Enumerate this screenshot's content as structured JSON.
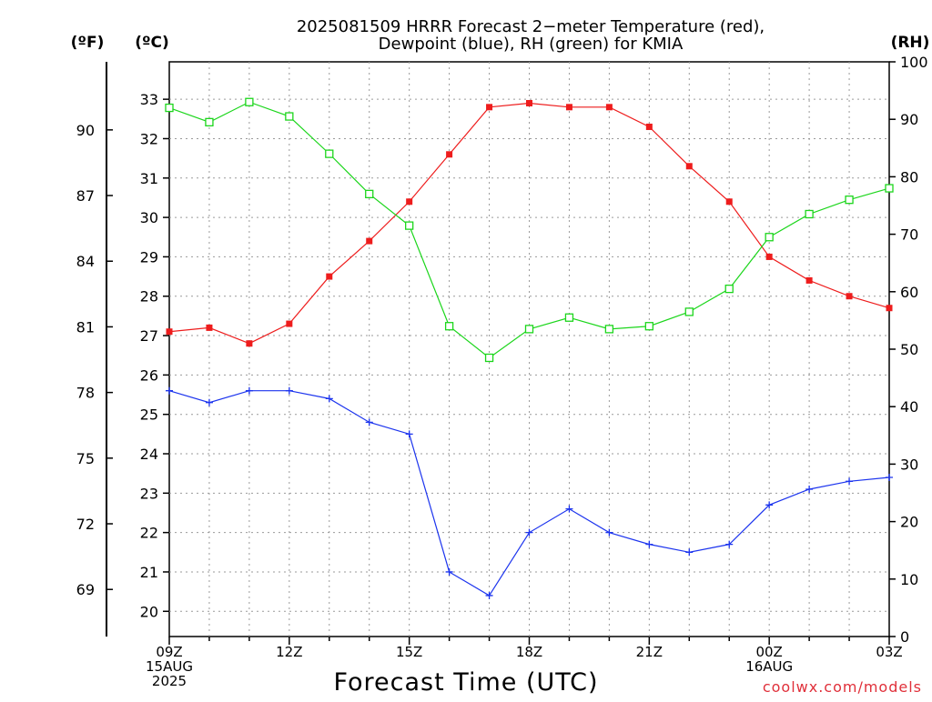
{
  "chart_data": {
    "type": "line",
    "title_lines": [
      "2025081509 HRRR Forecast 2−meter Temperature (red),",
      "Dewpoint (blue), RH (green) for KMIA"
    ],
    "xlabel": "Forecast Time (UTC)",
    "watermark": "coolwx.com/models",
    "unit_labels": {
      "fahrenheit": "(ºF)",
      "celsius": "(ºC)",
      "rh": "(RH)"
    },
    "x_hours": [
      0,
      1,
      2,
      3,
      4,
      5,
      6,
      7,
      8,
      9,
      10,
      11,
      12,
      13,
      14,
      15,
      16,
      17,
      18
    ],
    "x_range_hours": [
      0,
      18
    ],
    "x_ticks": [
      {
        "hour": 0,
        "lines": [
          "09Z",
          "15AUG",
          "2025"
        ]
      },
      {
        "hour": 3,
        "lines": [
          "12Z"
        ]
      },
      {
        "hour": 6,
        "lines": [
          "15Z"
        ]
      },
      {
        "hour": 9,
        "lines": [
          "18Z"
        ]
      },
      {
        "hour": 12,
        "lines": [
          "21Z"
        ]
      },
      {
        "hour": 15,
        "lines": [
          "00Z",
          "16AUG"
        ]
      },
      {
        "hour": 18,
        "lines": [
          "03Z"
        ]
      }
    ],
    "celsius_range": [
      19.36,
      33.95
    ],
    "celsius_ticks": [
      20,
      21,
      22,
      23,
      24,
      25,
      26,
      27,
      28,
      29,
      30,
      31,
      32,
      33
    ],
    "fahrenheit_ticks": [
      69,
      72,
      75,
      78,
      81,
      84,
      87,
      90
    ],
    "rh_range": [
      0,
      100
    ],
    "rh_ticks": [
      0,
      10,
      20,
      30,
      40,
      50,
      60,
      70,
      80,
      90,
      100
    ],
    "grid": true,
    "series": [
      {
        "name": "Temperature (red)",
        "axis": "celsius",
        "color": "#ee1c1c",
        "marker": "filled-square",
        "values": [
          27.1,
          27.2,
          26.8,
          27.3,
          28.5,
          29.4,
          30.4,
          31.6,
          32.8,
          32.9,
          32.8,
          32.8,
          32.3,
          31.3,
          30.4,
          29.0,
          28.4,
          28.0,
          27.7
        ]
      },
      {
        "name": "Dewpoint (blue)",
        "axis": "celsius",
        "color": "#1c34ee",
        "marker": "plus",
        "values": [
          25.6,
          25.3,
          25.6,
          25.6,
          25.4,
          24.8,
          24.5,
          21.0,
          20.4,
          22.0,
          22.6,
          22.0,
          21.7,
          21.5,
          21.7,
          22.7,
          23.1,
          23.3,
          23.4
        ]
      },
      {
        "name": "RH (green)",
        "axis": "rh",
        "color": "#1cd61c",
        "marker": "open-square",
        "values": [
          92,
          89.5,
          93,
          90.5,
          84,
          77,
          71.5,
          54,
          48.5,
          53.5,
          55.5,
          53.5,
          54,
          56.5,
          60.5,
          69.5,
          73.5,
          76,
          78
        ]
      }
    ]
  }
}
